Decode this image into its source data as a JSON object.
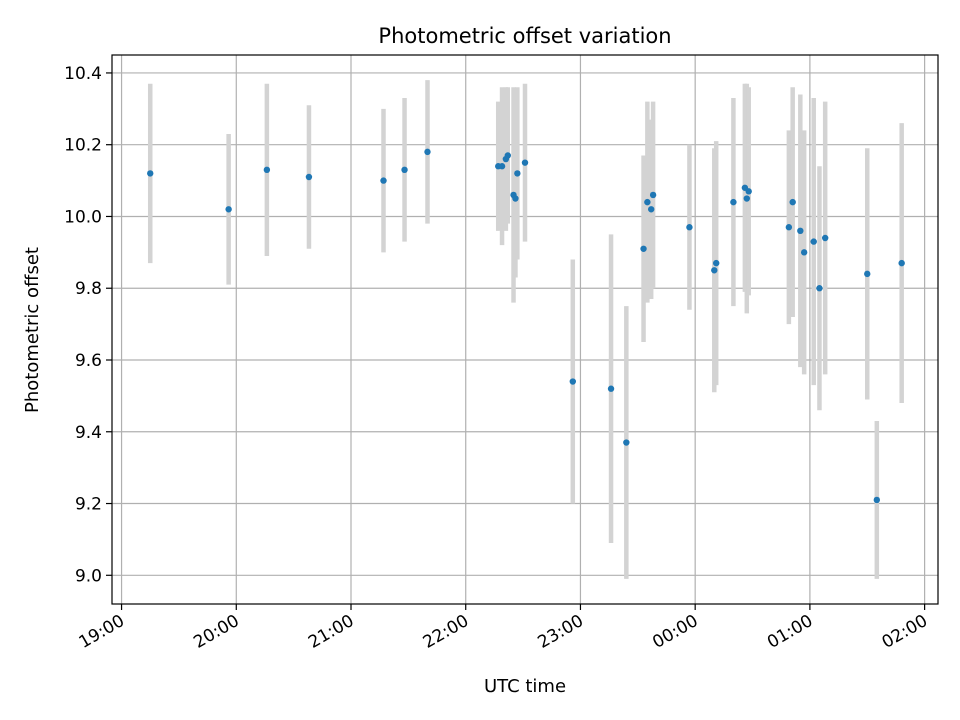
{
  "chart_data": {
    "type": "scatter",
    "title": "Photometric offset variation",
    "xlabel": "UTC time",
    "ylabel": "Photometric offset",
    "x_axis_kind": "time",
    "x_range": [
      "18:55",
      "02:07"
    ],
    "ylim": [
      8.92,
      10.45
    ],
    "x_ticks": [
      "19:00",
      "20:00",
      "21:00",
      "22:00",
      "23:00",
      "00:00",
      "01:00",
      "02:00"
    ],
    "y_ticks": [
      "9.0",
      "9.2",
      "9.4",
      "9.6",
      "9.8",
      "10.0",
      "10.2",
      "10.4"
    ],
    "grid": true,
    "marker_color": "#1f77b4",
    "errorbar_color": "#d3d3d3",
    "points": [
      {
        "x": "19:15",
        "y": 10.12,
        "err": 0.25
      },
      {
        "x": "19:56",
        "y": 10.02,
        "err": 0.21
      },
      {
        "x": "20:16",
        "y": 10.13,
        "err": 0.24
      },
      {
        "x": "20:38",
        "y": 10.11,
        "err": 0.2
      },
      {
        "x": "21:17",
        "y": 10.1,
        "err": 0.2
      },
      {
        "x": "21:28",
        "y": 10.13,
        "err": 0.2
      },
      {
        "x": "21:40",
        "y": 10.18,
        "err": 0.2
      },
      {
        "x": "22:17",
        "y": 10.14,
        "err": 0.18
      },
      {
        "x": "22:19",
        "y": 10.14,
        "err": 0.22
      },
      {
        "x": "22:21",
        "y": 10.16,
        "err": 0.2
      },
      {
        "x": "22:22",
        "y": 10.17,
        "err": 0.19
      },
      {
        "x": "22:25",
        "y": 10.06,
        "err": 0.3
      },
      {
        "x": "22:26",
        "y": 10.05,
        "err": 0.22
      },
      {
        "x": "22:27",
        "y": 10.12,
        "err": 0.24
      },
      {
        "x": "22:31",
        "y": 10.15,
        "err": 0.22
      },
      {
        "x": "22:56",
        "y": 9.54,
        "err": 0.34
      },
      {
        "x": "23:16",
        "y": 9.52,
        "err": 0.43
      },
      {
        "x": "23:24",
        "y": 9.37,
        "err": 0.38
      },
      {
        "x": "23:33",
        "y": 9.91,
        "err": 0.26
      },
      {
        "x": "23:35",
        "y": 10.04,
        "err": 0.28
      },
      {
        "x": "23:37",
        "y": 10.02,
        "err": 0.25
      },
      {
        "x": "23:38",
        "y": 10.06,
        "err": 0.26
      },
      {
        "x": "23:57",
        "y": 9.97,
        "err": 0.23
      },
      {
        "x": "00:10",
        "y": 9.85,
        "err": 0.34
      },
      {
        "x": "00:11",
        "y": 9.87,
        "err": 0.34
      },
      {
        "x": "00:20",
        "y": 10.04,
        "err": 0.29
      },
      {
        "x": "00:26",
        "y": 10.08,
        "err": 0.29
      },
      {
        "x": "00:27",
        "y": 10.05,
        "err": 0.32
      },
      {
        "x": "00:28",
        "y": 10.07,
        "err": 0.29
      },
      {
        "x": "00:49",
        "y": 9.97,
        "err": 0.27
      },
      {
        "x": "00:51",
        "y": 10.04,
        "err": 0.32
      },
      {
        "x": "00:55",
        "y": 9.96,
        "err": 0.38
      },
      {
        "x": "00:57",
        "y": 9.9,
        "err": 0.34
      },
      {
        "x": "01:02",
        "y": 9.93,
        "err": 0.4
      },
      {
        "x": "01:05",
        "y": 9.8,
        "err": 0.34
      },
      {
        "x": "01:08",
        "y": 9.94,
        "err": 0.38
      },
      {
        "x": "01:30",
        "y": 9.84,
        "err": 0.35
      },
      {
        "x": "01:35",
        "y": 9.21,
        "err": 0.22
      },
      {
        "x": "01:48",
        "y": 9.87,
        "err": 0.39
      }
    ]
  }
}
